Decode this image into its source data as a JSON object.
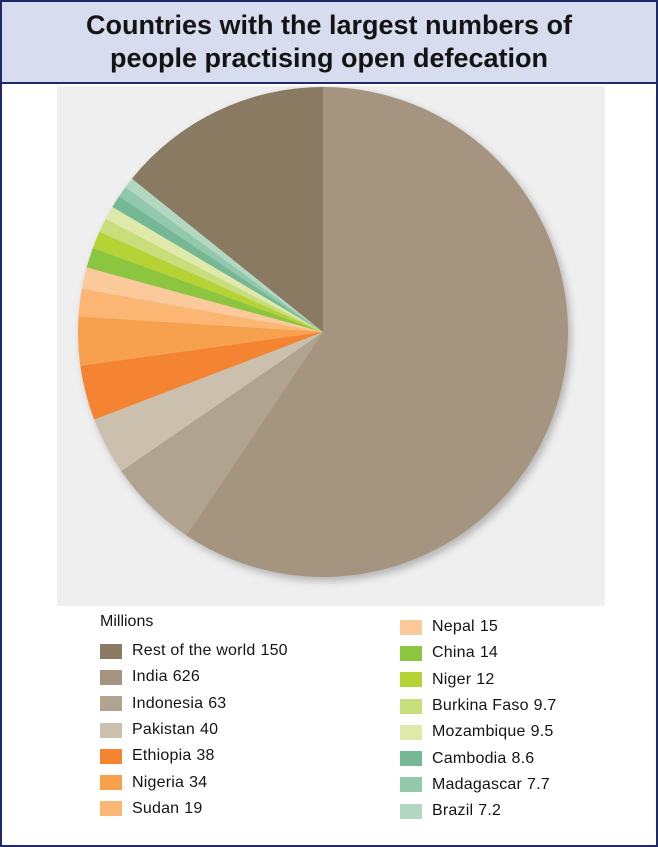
{
  "title": "Countries with the largest numbers of people practising open defecation",
  "chart_data": {
    "type": "pie",
    "unit_label": "Millions",
    "slices": [
      {
        "label": "India",
        "value": 626,
        "color": "#a49480"
      },
      {
        "label": "Indonesia",
        "value": 63,
        "color": "#b0a490"
      },
      {
        "label": "Pakistan",
        "value": 40,
        "color": "#cbbfad"
      },
      {
        "label": "Ethiopia",
        "value": 38,
        "color": "#f58431"
      },
      {
        "label": "Nigeria",
        "value": 34,
        "color": "#f7a04e"
      },
      {
        "label": "Sudan",
        "value": 19,
        "color": "#fbb673"
      },
      {
        "label": "Nepal",
        "value": 15,
        "color": "#fcc99a"
      },
      {
        "label": "China",
        "value": 14,
        "color": "#8cc63f"
      },
      {
        "label": "Niger",
        "value": 12,
        "color": "#b5d334"
      },
      {
        "label": "Burkina Faso",
        "value": 9.7,
        "color": "#c8de7a"
      },
      {
        "label": "Mozambique",
        "value": 9.5,
        "color": "#dfe9aa"
      },
      {
        "label": "Cambodia",
        "value": 8.6,
        "color": "#76b896"
      },
      {
        "label": "Madagascar",
        "value": 7.7,
        "color": "#92c9ad"
      },
      {
        "label": "Brazil",
        "value": 7.2,
        "color": "#b3d8c2"
      },
      {
        "label": "Rest of the world",
        "value": 150,
        "color": "#8b7a62"
      }
    ],
    "legend_left": [
      {
        "label": "Rest of the world",
        "value": "150",
        "color": "#8b7a62"
      },
      {
        "label": "India",
        "value": "626",
        "color": "#a49480"
      },
      {
        "label": "Indonesia",
        "value": "63",
        "color": "#b0a490"
      },
      {
        "label": "Pakistan",
        "value": "40",
        "color": "#cbbfad"
      },
      {
        "label": "Ethiopia",
        "value": "38",
        "color": "#f58431"
      },
      {
        "label": "Nigeria",
        "value": "34",
        "color": "#f7a04e"
      },
      {
        "label": "Sudan",
        "value": "19",
        "color": "#fbb673"
      }
    ],
    "legend_right": [
      {
        "label": "Nepal",
        "value": "15",
        "color": "#fcc99a"
      },
      {
        "label": "China",
        "value": "14",
        "color": "#8cc63f"
      },
      {
        "label": "Niger",
        "value": "12",
        "color": "#b5d334"
      },
      {
        "label": "Burkina Faso",
        "value": "9.7",
        "color": "#c8de7a"
      },
      {
        "label": "Mozambique",
        "value": "9.5",
        "color": "#dfe9aa"
      },
      {
        "label": "Cambodia",
        "value": "8.6",
        "color": "#76b896"
      },
      {
        "label": "Madagascar",
        "value": "7.7",
        "color": "#92c9ad"
      },
      {
        "label": "Brazil",
        "value": "7.2",
        "color": "#b3d8c2"
      }
    ],
    "start_angle": "12 o'clock",
    "direction": "clockwise"
  }
}
